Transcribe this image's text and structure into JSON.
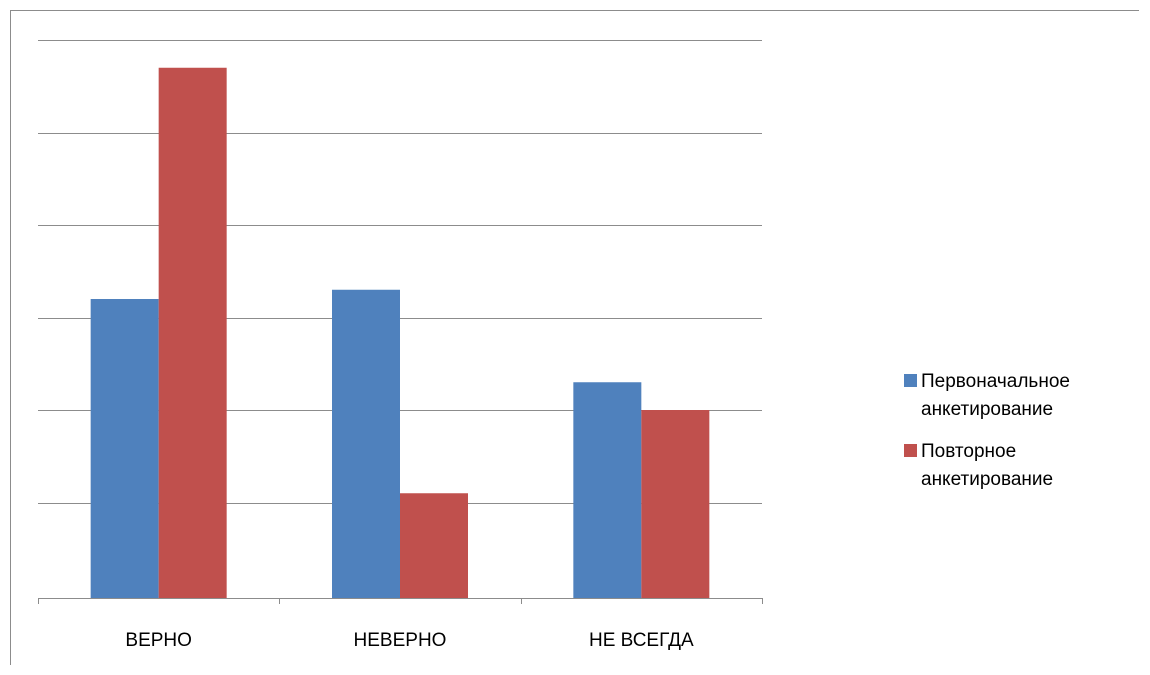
{
  "chart_data": {
    "type": "bar",
    "title": "",
    "xlabel": "",
    "ylabel": "",
    "categories": [
      "ВЕРНО",
      "НЕВЕРНО",
      "НЕ ВСЕГДА"
    ],
    "series": [
      {
        "name": "Первоначальное анкетирование",
        "color": "#4F81BD",
        "values": [
          3.2,
          3.3,
          2.3
        ]
      },
      {
        "name": "Повторное анкетирование",
        "color": "#C0504D",
        "values": [
          5.7,
          1.1,
          2.0
        ]
      }
    ],
    "ylim": [
      0,
      6
    ],
    "grid": true,
    "legend": "right"
  }
}
